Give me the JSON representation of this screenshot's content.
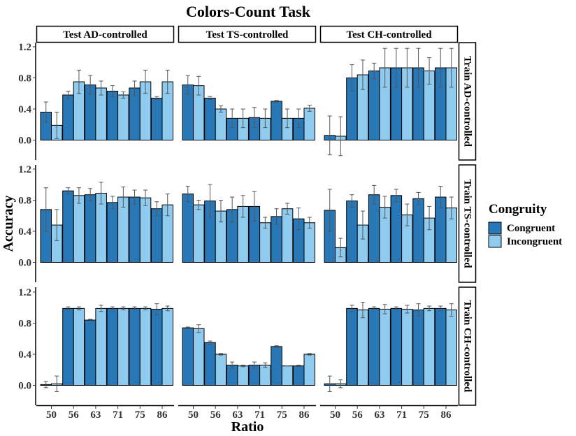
{
  "chart_data": {
    "type": "bar",
    "title": "Colors-Count Task",
    "xlabel": "Ratio",
    "ylabel": "Accuracy",
    "categories": [
      "50",
      "56",
      "63",
      "71",
      "75",
      "86"
    ],
    "yticks": [
      "0.0",
      "0.4",
      "0.8",
      "1.2"
    ],
    "ylim": [
      -0.2,
      1.25
    ],
    "grid": false,
    "legend": {
      "title": "Congruity",
      "position": "right",
      "entries": [
        "Congruent",
        "Incongruent"
      ]
    },
    "colors": {
      "Congruent": "#2878b8",
      "Incongruent": "#8ecbef",
      "outline": "#000000",
      "strip_bg": "#ffffff"
    },
    "col_facets": [
      "Test AD-controlled",
      "Test TS-controlled",
      "Test CH-controlled"
    ],
    "row_facets": [
      "Train AD-controlled",
      "Train TS-controlled",
      "Train CH-controlled"
    ],
    "panels": [
      {
        "row": "Train AD-controlled",
        "col": "Test AD-controlled",
        "series": [
          {
            "name": "Congruent",
            "values": [
              0.36,
              0.58,
              0.71,
              0.63,
              0.67,
              0.54
            ],
            "err": [
              0.13,
              0.05,
              0.12,
              0.07,
              0.09,
              0.02
            ]
          },
          {
            "name": "Incongruent",
            "values": [
              0.19,
              0.75,
              0.67,
              0.58,
              0.75,
              0.75
            ],
            "err": [
              0.17,
              0.15,
              0.09,
              0.04,
              0.15,
              0.15
            ]
          }
        ]
      },
      {
        "row": "Train AD-controlled",
        "col": "Test TS-controlled",
        "series": [
          {
            "name": "Congruent",
            "values": [
              0.71,
              0.54,
              0.28,
              0.29,
              0.5,
              0.28
            ],
            "err": [
              0.12,
              0.02,
              0.12,
              0.13,
              0.01,
              0.12
            ]
          },
          {
            "name": "Incongruent",
            "values": [
              0.7,
              0.4,
              0.28,
              0.28,
              0.28,
              0.41
            ],
            "err": [
              0.12,
              0.04,
              0.12,
              0.12,
              0.12,
              0.04
            ]
          }
        ]
      },
      {
        "row": "Train AD-controlled",
        "col": "Test CH-controlled",
        "series": [
          {
            "name": "Congruent",
            "values": [
              0.06,
              0.8,
              0.89,
              0.93,
              0.93,
              0.93
            ],
            "err": [
              0.25,
              0.17,
              0.1,
              0.25,
              0.25,
              0.25
            ]
          },
          {
            "name": "Incongruent",
            "values": [
              0.05,
              0.84,
              0.93,
              0.93,
              0.89,
              0.93
            ],
            "err": [
              0.25,
              0.19,
              0.25,
              0.25,
              0.17,
              0.25
            ]
          }
        ]
      },
      {
        "row": "Train TS-controlled",
        "col": "Test AD-controlled",
        "series": [
          {
            "name": "Congruent",
            "values": [
              0.68,
              0.92,
              0.87,
              0.77,
              0.84,
              0.69
            ],
            "err": [
              0.28,
              0.04,
              0.08,
              0.08,
              0.09,
              0.09
            ]
          },
          {
            "name": "Incongruent",
            "values": [
              0.48,
              0.86,
              0.89,
              0.84,
              0.83,
              0.74
            ],
            "err": [
              0.2,
              0.1,
              0.14,
              0.13,
              0.1,
              0.14
            ]
          }
        ]
      },
      {
        "row": "Train TS-controlled",
        "col": "Test TS-controlled",
        "series": [
          {
            "name": "Congruent",
            "values": [
              0.88,
              0.79,
              0.68,
              0.72,
              0.59,
              0.56
            ],
            "err": [
              0.1,
              0.21,
              0.16,
              0.19,
              0.1,
              0.14
            ]
          },
          {
            "name": "Incongruent",
            "values": [
              0.74,
              0.66,
              0.72,
              0.51,
              0.69,
              0.51
            ],
            "err": [
              0.06,
              0.14,
              0.14,
              0.07,
              0.07,
              0.07
            ]
          }
        ]
      },
      {
        "row": "Train TS-controlled",
        "col": "Test CH-controlled",
        "series": [
          {
            "name": "Congruent",
            "values": [
              0.67,
              0.79,
              0.87,
              0.86,
              0.82,
              0.84
            ],
            "err": [
              0.27,
              0.08,
              0.12,
              0.08,
              0.08,
              0.14
            ]
          },
          {
            "name": "Incongruent",
            "values": [
              0.19,
              0.48,
              0.71,
              0.61,
              0.57,
              0.7
            ],
            "err": [
              0.12,
              0.18,
              0.14,
              0.14,
              0.15,
              0.14
            ]
          }
        ]
      },
      {
        "row": "Train CH-controlled",
        "col": "Test AD-controlled",
        "series": [
          {
            "name": "Congruent",
            "values": [
              0.01,
              0.99,
              0.84,
              0.99,
              0.99,
              0.98
            ],
            "err": [
              0.04,
              0.02,
              0.01,
              0.02,
              0.02,
              0.07
            ]
          },
          {
            "name": "Incongruent",
            "values": [
              0.02,
              0.99,
              0.99,
              0.99,
              0.99,
              0.99
            ],
            "err": [
              0.1,
              0.02,
              0.04,
              0.02,
              0.02,
              0.03
            ]
          }
        ]
      },
      {
        "row": "Train CH-controlled",
        "col": "Test TS-controlled",
        "series": [
          {
            "name": "Congruent",
            "values": [
              0.74,
              0.55,
              0.26,
              0.26,
              0.5,
              0.25
            ],
            "err": [
              0.01,
              0.02,
              0.04,
              0.04,
              0.01,
              0.01
            ]
          },
          {
            "name": "Incongruent",
            "values": [
              0.73,
              0.4,
              0.25,
              0.26,
              0.25,
              0.4
            ],
            "err": [
              0.05,
              0.01,
              0.01,
              0.03,
              0.0,
              0.01
            ]
          }
        ]
      },
      {
        "row": "Train CH-controlled",
        "col": "Test CH-controlled",
        "series": [
          {
            "name": "Congruent",
            "values": [
              0.02,
              0.99,
              0.99,
              0.99,
              0.97,
              0.99
            ],
            "err": [
              0.1,
              0.04,
              0.02,
              0.02,
              0.08,
              0.03
            ]
          },
          {
            "name": "Incongruent",
            "values": [
              0.02,
              0.97,
              0.98,
              0.98,
              0.99,
              0.97
            ],
            "err": [
              0.05,
              0.1,
              0.06,
              0.05,
              0.03,
              0.08
            ]
          }
        ]
      }
    ]
  }
}
